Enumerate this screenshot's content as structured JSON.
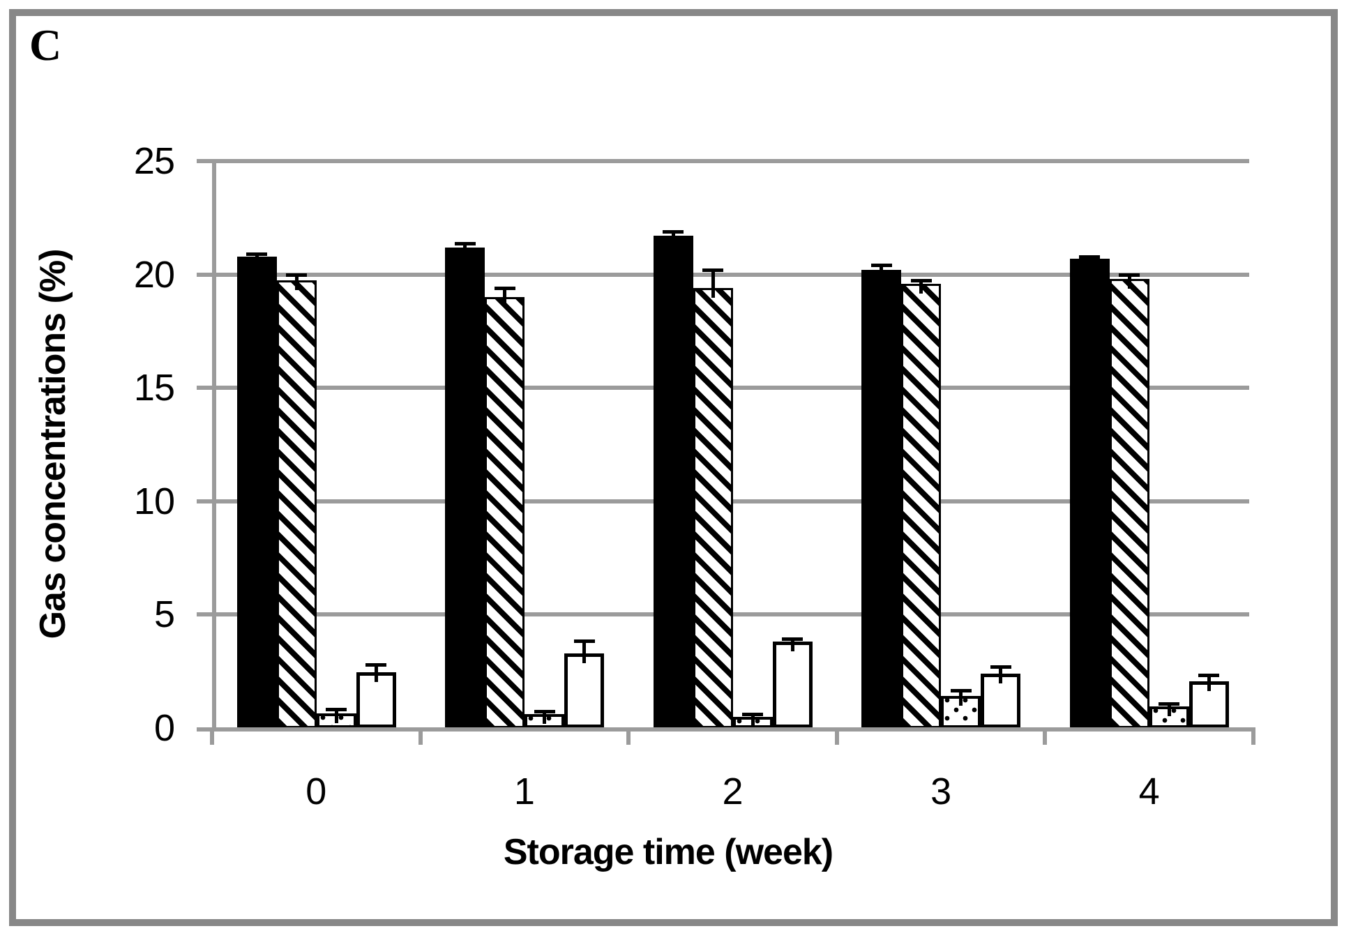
{
  "panel_label": "C",
  "colors": {
    "background": "#ffffff",
    "frame_border": "#888888",
    "grid_and_axis": "#9b9b9b",
    "bar_fill_black": "#000000",
    "bar_outline": "#000000"
  },
  "chart_data": {
    "type": "bar",
    "title": "",
    "xlabel": "Storage time (week)",
    "ylabel": "Gas concentrations (%)",
    "categories": [
      "0",
      "1",
      "2",
      "3",
      "4"
    ],
    "ylim": [
      0,
      25
    ],
    "ytick_values": [
      0,
      5,
      10,
      15,
      20,
      25
    ],
    "ytick_labels": [
      "0",
      "5",
      "10",
      "15",
      "20",
      "25"
    ],
    "grid": true,
    "legend_position": "none",
    "error_bars": true,
    "series": [
      {
        "name": "series-1-black-solid",
        "pattern": "solid-black",
        "values": [
          20.8,
          21.2,
          21.7,
          20.2,
          20.7
        ],
        "errors": [
          0.1,
          0.18,
          0.2,
          0.22,
          0.1
        ]
      },
      {
        "name": "series-2-diagonal-hatch",
        "pattern": "diagonal-hatch",
        "values": [
          19.75,
          19.0,
          19.4,
          19.6,
          19.8
        ],
        "errors": [
          0.25,
          0.4,
          0.8,
          0.15,
          0.18
        ]
      },
      {
        "name": "series-3-dotted",
        "pattern": "dotted",
        "values": [
          0.65,
          0.6,
          0.5,
          1.4,
          0.95
        ],
        "errors": [
          0.18,
          0.15,
          0.1,
          0.25,
          0.12
        ]
      },
      {
        "name": "series-4-white-open",
        "pattern": "white",
        "values": [
          2.45,
          3.3,
          3.8,
          2.4,
          2.05
        ],
        "errors": [
          0.35,
          0.55,
          0.15,
          0.3,
          0.3
        ]
      }
    ]
  }
}
